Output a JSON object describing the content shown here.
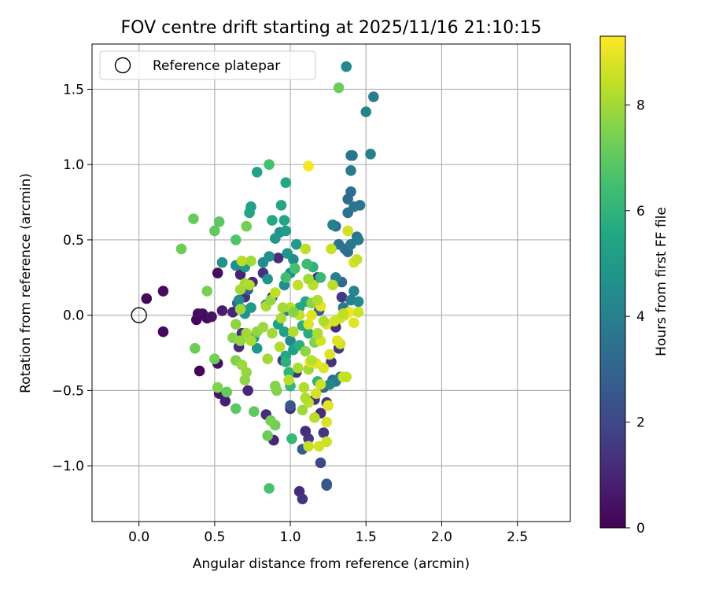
{
  "chart_data": {
    "type": "scatter",
    "title": "FOV centre drift starting at 2025/11/16 21:10:15",
    "xlabel": "Angular distance from reference (arcmin)",
    "ylabel": "Rotation from reference (arcmin)",
    "xlim": [
      -0.31,
      2.85
    ],
    "ylim": [
      -1.37,
      1.8
    ],
    "xticks": [
      0.0,
      0.5,
      1.0,
      1.5,
      2.0,
      2.5
    ],
    "xtick_labels": [
      "0.0",
      "0.5",
      "1.0",
      "1.5",
      "2.0",
      "2.5"
    ],
    "yticks": [
      -1.0,
      -0.5,
      0.0,
      0.5,
      1.0,
      1.5
    ],
    "ytick_labels": [
      "−1.0",
      "−0.5",
      "0.0",
      "0.5",
      "1.0",
      "1.5"
    ],
    "grid": true,
    "legend": {
      "position": "upper-left",
      "label": "Reference platepar"
    },
    "reference_point": {
      "x": 0.0,
      "y": 0.0
    },
    "colorbar": {
      "label": "Hours from first FF file",
      "range": [
        0,
        9.3
      ],
      "ticks": [
        0,
        2,
        4,
        6,
        8
      ],
      "tick_labels": [
        "0",
        "2",
        "4",
        "6",
        "8"
      ],
      "colormap": "viridis"
    },
    "points": [
      [
        0.05,
        0.11,
        0.2
      ],
      [
        0.16,
        0.16,
        0.3
      ],
      [
        0.16,
        -0.11,
        0.2
      ],
      [
        0.38,
        -0.03,
        0.2
      ],
      [
        0.39,
        0.01,
        0.3
      ],
      [
        0.4,
        -0.37,
        0.1
      ],
      [
        0.42,
        0.01,
        0.4
      ],
      [
        0.45,
        -0.02,
        0.3
      ],
      [
        0.48,
        -0.01,
        0.5
      ],
      [
        0.52,
        -0.32,
        0.4
      ],
      [
        0.52,
        0.28,
        0.3
      ],
      [
        0.53,
        -0.52,
        0.6
      ],
      [
        0.55,
        0.03,
        0.7
      ],
      [
        0.57,
        -0.57,
        0.8
      ],
      [
        0.62,
        0.02,
        1.0
      ],
      [
        0.66,
        -0.21,
        1.1
      ],
      [
        0.67,
        0.27,
        0.9
      ],
      [
        0.68,
        -0.12,
        1.2
      ],
      [
        0.7,
        0.12,
        1.4
      ],
      [
        0.72,
        -0.5,
        1.0
      ],
      [
        0.75,
        0.22,
        1.1
      ],
      [
        0.82,
        0.28,
        1.3
      ],
      [
        0.84,
        -0.66,
        1.2
      ],
      [
        0.88,
        0.12,
        1.4
      ],
      [
        0.89,
        -0.83,
        1.0
      ],
      [
        0.92,
        0.38,
        1.2
      ],
      [
        0.95,
        -0.3,
        1.5
      ],
      [
        1.0,
        -0.62,
        1.1
      ],
      [
        1.04,
        -0.38,
        1.3
      ],
      [
        1.06,
        -1.17,
        1.2
      ],
      [
        1.08,
        -1.22,
        1.4
      ],
      [
        1.1,
        -0.77,
        1.2
      ],
      [
        1.12,
        -0.82,
        1.5
      ],
      [
        1.16,
        -0.56,
        1.3
      ],
      [
        1.18,
        0.25,
        1.5
      ],
      [
        1.2,
        -0.65,
        1.2
      ],
      [
        1.22,
        -0.78,
        1.4
      ],
      [
        1.24,
        -0.58,
        1.5
      ],
      [
        1.27,
        -0.31,
        1.4
      ],
      [
        1.3,
        -0.08,
        1.3
      ],
      [
        1.32,
        -0.22,
        1.5
      ],
      [
        1.34,
        0.12,
        1.6
      ],
      [
        1.2,
        -0.98,
        2.0
      ],
      [
        1.24,
        -1.12,
        2.4
      ],
      [
        1.24,
        -1.13,
        2.5
      ],
      [
        1.08,
        -0.89,
        2.7
      ],
      [
        1.0,
        -0.6,
        2.5
      ],
      [
        0.65,
        0.08,
        2.8
      ],
      [
        0.72,
        0.17,
        2.9
      ],
      [
        0.84,
        0.07,
        3.1
      ],
      [
        1.19,
        0.03,
        2.9
      ],
      [
        1.22,
        -0.48,
        3.0
      ],
      [
        1.28,
        -0.43,
        3.1
      ],
      [
        1.34,
        0.22,
        3.2
      ],
      [
        1.3,
        0.59,
        3.3
      ],
      [
        1.32,
        0.47,
        3.5
      ],
      [
        1.36,
        0.44,
        3.6
      ],
      [
        1.38,
        0.42,
        3.4
      ],
      [
        1.4,
        0.47,
        3.7
      ],
      [
        1.44,
        0.52,
        3.5
      ],
      [
        1.45,
        0.5,
        3.8
      ],
      [
        1.46,
        0.73,
        3.6
      ],
      [
        1.4,
        0.82,
        3.4
      ],
      [
        1.38,
        0.77,
        3.3
      ],
      [
        1.42,
        0.72,
        3.7
      ],
      [
        1.38,
        0.68,
        3.5
      ],
      [
        1.4,
        0.96,
        3.8
      ],
      [
        1.4,
        1.06,
        3.9
      ],
      [
        1.41,
        1.06,
        3.6
      ],
      [
        1.53,
        1.07,
        4.0
      ],
      [
        1.5,
        1.35,
        4.2
      ],
      [
        1.55,
        1.45,
        3.9
      ],
      [
        1.37,
        1.65,
        4.3
      ],
      [
        1.28,
        0.6,
        4.1
      ],
      [
        1.3,
        0.25,
        3.9
      ],
      [
        1.35,
        0.05,
        3.8
      ],
      [
        1.4,
        0.1,
        4.0
      ],
      [
        1.42,
        0.16,
        4.2
      ],
      [
        1.45,
        0.09,
        4.4
      ],
      [
        1.33,
        -0.41,
        4.1
      ],
      [
        1.3,
        -0.44,
        3.9
      ],
      [
        1.26,
        -0.46,
        4.2
      ],
      [
        1.0,
        -0.17,
        4.3
      ],
      [
        0.97,
        0.03,
        4.2
      ],
      [
        1.0,
        0.28,
        4.5
      ],
      [
        0.96,
        0.2,
        4.4
      ],
      [
        1.02,
        0.37,
        4.6
      ],
      [
        0.98,
        0.41,
        4.8
      ],
      [
        1.04,
        0.47,
        5.0
      ],
      [
        0.93,
        0.55,
        4.7
      ],
      [
        0.97,
        0.56,
        5.1
      ],
      [
        0.9,
        0.51,
        4.9
      ],
      [
        0.86,
        0.39,
        4.6
      ],
      [
        0.82,
        0.35,
        4.5
      ],
      [
        0.85,
        0.24,
        4.8
      ],
      [
        0.64,
        0.33,
        4.5
      ],
      [
        0.7,
        0.32,
        4.9
      ],
      [
        0.55,
        0.35,
        4.7
      ],
      [
        0.66,
        0.1,
        4.4
      ],
      [
        0.68,
        0.04,
        4.6
      ],
      [
        0.7,
        0.01,
        4.8
      ],
      [
        0.74,
        0.05,
        5.0
      ],
      [
        0.76,
        -0.15,
        5.1
      ],
      [
        0.78,
        -0.22,
        4.9
      ],
      [
        0.92,
        -0.06,
        5.2
      ],
      [
        0.96,
        -0.11,
        5.3
      ],
      [
        0.94,
        0.73,
        5.4
      ],
      [
        0.96,
        0.63,
        5.5
      ],
      [
        0.88,
        0.63,
        5.6
      ],
      [
        0.74,
        0.72,
        5.3
      ],
      [
        0.73,
        0.68,
        5.4
      ],
      [
        0.78,
        0.95,
        5.3
      ],
      [
        0.97,
        0.88,
        5.5
      ],
      [
        1.02,
        -0.23,
        5.2
      ],
      [
        1.06,
        0.05,
        5.6
      ],
      [
        1.1,
        0.09,
        5.5
      ],
      [
        1.08,
        -0.07,
        5.8
      ],
      [
        1.12,
        -0.12,
        5.7
      ],
      [
        1.06,
        -0.2,
        5.9
      ],
      [
        0.97,
        -0.27,
        5.6
      ],
      [
        0.97,
        -0.31,
        5.9
      ],
      [
        0.99,
        -0.38,
        6.0
      ],
      [
        1.0,
        -0.47,
        6.1
      ],
      [
        1.01,
        -0.82,
        6.2
      ],
      [
        1.18,
        -0.44,
        6.0
      ],
      [
        1.15,
        0.32,
        6.0
      ],
      [
        1.2,
        0.25,
        6.2
      ],
      [
        1.11,
        0.34,
        6.3
      ],
      [
        1.03,
        0.31,
        6.5
      ],
      [
        0.97,
        0.25,
        6.4
      ],
      [
        0.86,
        1.0,
        6.5
      ],
      [
        0.86,
        -1.15,
        6.6
      ],
      [
        0.64,
        0.5,
        6.7
      ],
      [
        0.53,
        0.62,
        6.9
      ],
      [
        0.5,
        0.56,
        7.0
      ],
      [
        0.36,
        0.64,
        7.1
      ],
      [
        0.28,
        0.44,
        7.2
      ],
      [
        0.71,
        0.59,
        7.3
      ],
      [
        0.45,
        0.16,
        7.4
      ],
      [
        0.37,
        -0.22,
        7.2
      ],
      [
        0.5,
        -0.29,
        7.3
      ],
      [
        0.52,
        -0.48,
        7.5
      ],
      [
        0.58,
        -0.51,
        7.1
      ],
      [
        0.64,
        -0.62,
        6.9
      ],
      [
        0.76,
        -0.64,
        7.0
      ],
      [
        0.85,
        -0.8,
        7.2
      ],
      [
        0.9,
        -0.73,
        7.3
      ],
      [
        0.87,
        -0.7,
        7.4
      ],
      [
        0.91,
        -0.5,
        7.5
      ],
      [
        0.9,
        -0.47,
        7.6
      ],
      [
        0.7,
        -0.43,
        7.7
      ],
      [
        0.71,
        -0.38,
        7.8
      ],
      [
        0.64,
        -0.3,
        7.5
      ],
      [
        0.68,
        -0.33,
        7.9
      ],
      [
        0.62,
        -0.15,
        7.6
      ],
      [
        0.67,
        -0.17,
        7.8
      ],
      [
        0.71,
        -0.12,
        8.0
      ],
      [
        0.74,
        -0.17,
        8.1
      ],
      [
        0.78,
        -0.11,
        7.7
      ],
      [
        0.82,
        -0.08,
        7.9
      ],
      [
        0.85,
        -0.29,
        8.0
      ],
      [
        0.93,
        -0.21,
        8.2
      ],
      [
        0.84,
        0.06,
        8.1
      ],
      [
        0.87,
        0.1,
        7.8
      ],
      [
        0.64,
        -0.06,
        7.7
      ],
      [
        0.67,
        0.04,
        7.9
      ],
      [
        0.67,
        0.17,
        8.0
      ],
      [
        0.7,
        0.21,
        8.1
      ],
      [
        0.73,
        0.2,
        8.2
      ],
      [
        0.74,
        0.36,
        8.0
      ],
      [
        0.68,
        0.36,
        8.3
      ],
      [
        1.32,
        1.51,
        7.2
      ],
      [
        1.14,
        0.08,
        7.6
      ],
      [
        1.16,
        -0.18,
        7.5
      ],
      [
        1.1,
        -0.24,
        7.7
      ],
      [
        1.12,
        -0.36,
        8.0
      ],
      [
        1.09,
        -0.48,
        8.2
      ],
      [
        1.12,
        -0.58,
        8.4
      ],
      [
        1.16,
        -0.68,
        8.3
      ],
      [
        1.12,
        -0.87,
        8.5
      ],
      [
        1.19,
        -0.87,
        8.7
      ],
      [
        1.24,
        -0.84,
        8.6
      ],
      [
        1.24,
        -0.71,
        8.8
      ],
      [
        1.25,
        -0.6,
        8.9
      ],
      [
        1.17,
        -0.52,
        8.7
      ],
      [
        1.2,
        -0.46,
        8.6
      ],
      [
        1.22,
        -0.35,
        8.8
      ],
      [
        1.17,
        -0.32,
        8.9
      ],
      [
        1.13,
        -0.31,
        9.0
      ],
      [
        1.2,
        -0.17,
        8.7
      ],
      [
        1.12,
        -0.06,
        8.8
      ],
      [
        1.14,
        0.0,
        8.9
      ],
      [
        1.2,
        0.06,
        9.0
      ],
      [
        1.24,
        -0.06,
        8.9
      ],
      [
        1.29,
        -0.04,
        8.7
      ],
      [
        1.33,
        -0.02,
        8.6
      ],
      [
        1.36,
        0.0,
        8.8
      ],
      [
        1.39,
        0.02,
        9.1
      ],
      [
        1.42,
        -0.05,
        8.9
      ],
      [
        1.45,
        0.02,
        8.6
      ],
      [
        1.35,
        -0.41,
        8.7
      ],
      [
        1.37,
        -0.41,
        8.5
      ],
      [
        1.33,
        -0.19,
        8.6
      ],
      [
        1.31,
        -0.17,
        8.9
      ],
      [
        1.26,
        -0.26,
        8.8
      ],
      [
        1.1,
        0.44,
        8.4
      ],
      [
        1.27,
        0.44,
        8.5
      ],
      [
        1.38,
        0.56,
        8.6
      ],
      [
        1.42,
        0.35,
        8.7
      ],
      [
        1.44,
        0.37,
        8.5
      ],
      [
        1.12,
        0.99,
        9.2
      ],
      [
        1.15,
        0.2,
        8.3
      ],
      [
        1.12,
        0.24,
        8.0
      ],
      [
        1.18,
        0.1,
        8.2
      ],
      [
        1.0,
        0.05,
        8.3
      ],
      [
        1.06,
        0.0,
        8.5
      ],
      [
        0.9,
        0.15,
        8.4
      ],
      [
        0.94,
        -0.02,
        8.1
      ],
      [
        0.95,
        0.05,
        8.0
      ],
      [
        1.02,
        -0.11,
        8.2
      ],
      [
        1.05,
        0.2,
        8.4
      ],
      [
        0.99,
        -0.43,
        8.3
      ],
      [
        1.05,
        -0.35,
        8.1
      ],
      [
        1.02,
        0.02,
        7.6
      ],
      [
        0.88,
        -0.12,
        8.0
      ],
      [
        1.08,
        -0.63,
        7.9
      ],
      [
        1.1,
        -0.55,
        8.2
      ],
      [
        1.14,
        -0.3,
        8.3
      ],
      [
        1.18,
        -0.12,
        8.1
      ],
      [
        1.22,
        -0.04,
        8.2
      ],
      [
        1.28,
        0.2,
        8.3
      ],
      [
        1.35,
        0.01,
        8.4
      ]
    ]
  }
}
